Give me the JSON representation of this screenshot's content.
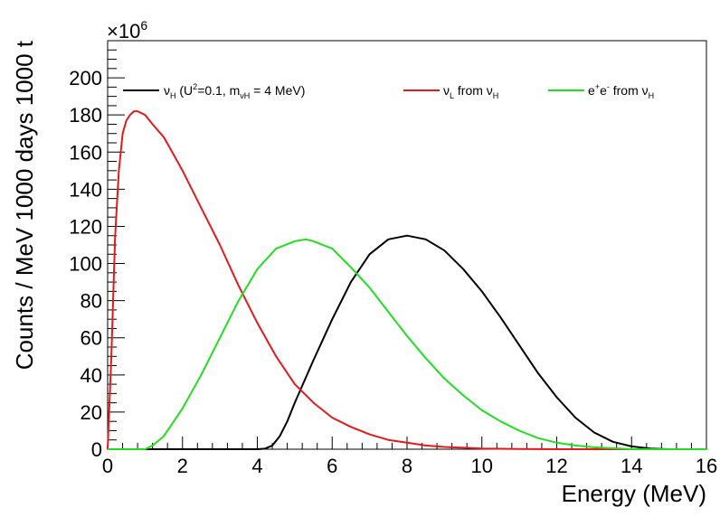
{
  "chart_data": {
    "type": "line",
    "xlabel": "Energy (MeV)",
    "ylabel": "Counts / MeV 1000 days 1000 t",
    "y_multiplier_label": "×10",
    "y_multiplier_exponent": "6",
    "xlim": [
      0,
      16
    ],
    "ylim": [
      0,
      220
    ],
    "xticks": [
      0,
      2,
      4,
      6,
      8,
      10,
      12,
      14,
      16
    ],
    "yticks": [
      0,
      20,
      40,
      60,
      80,
      100,
      120,
      140,
      160,
      180,
      200
    ],
    "grid": false,
    "legend_position": "top",
    "legend": [
      {
        "series": 0,
        "parts": [
          {
            "t": "ν"
          },
          {
            "t": "H",
            "s": "sub"
          },
          {
            "t": " (U"
          },
          {
            "t": "2",
            "s": "sup"
          },
          {
            "t": "=0.1, m"
          },
          {
            "t": "νH",
            "s": "sub"
          },
          {
            "t": " = 4 MeV)"
          }
        ]
      },
      {
        "series": 1,
        "parts": [
          {
            "t": "ν"
          },
          {
            "t": "L",
            "s": "sub"
          },
          {
            "t": " from ν"
          },
          {
            "t": "H",
            "s": "sub"
          }
        ]
      },
      {
        "series": 2,
        "parts": [
          {
            "t": "e"
          },
          {
            "t": "+",
            "s": "sup"
          },
          {
            "t": "e"
          },
          {
            "t": "-",
            "s": "sup"
          },
          {
            "t": " from ν"
          },
          {
            "t": "H",
            "s": "sub"
          }
        ]
      }
    ],
    "series": [
      {
        "color": "#000000",
        "x": [
          0,
          4.0,
          4.2,
          4.4,
          4.6,
          4.8,
          5.0,
          5.5,
          6.0,
          6.5,
          7.0,
          7.5,
          8.0,
          8.5,
          9.0,
          9.5,
          10.0,
          10.5,
          11.0,
          11.5,
          12.0,
          12.5,
          13.0,
          13.5,
          14.0,
          14.5,
          15.0,
          16.0
        ],
        "y": [
          0,
          0,
          0.3,
          2,
          7,
          15,
          25,
          48,
          70,
          90,
          105,
          113,
          115,
          113,
          107,
          97,
          85,
          71,
          56,
          41,
          28,
          17,
          9,
          4,
          1.5,
          0.4,
          0,
          0
        ]
      },
      {
        "color": "#e31a1c",
        "x": [
          0,
          0.1,
          0.2,
          0.3,
          0.4,
          0.5,
          0.6,
          0.7,
          0.8,
          1.0,
          1.2,
          1.5,
          2.0,
          2.5,
          3.0,
          3.5,
          4.0,
          4.5,
          5.0,
          5.5,
          6.0,
          6.5,
          7.0,
          7.5,
          8.0,
          8.5,
          9.0,
          10.0,
          11.0,
          12.0,
          13.0,
          14.0,
          16.0
        ],
        "y": [
          0,
          50,
          115,
          150,
          170,
          177,
          180,
          182,
          182,
          180,
          175,
          168,
          150,
          130,
          110,
          88,
          68,
          50,
          35,
          25,
          17,
          12,
          8,
          5,
          3.5,
          2,
          1.2,
          0.4,
          0.1,
          0,
          0,
          0,
          0
        ]
      },
      {
        "color": "#22dd22",
        "x": [
          0,
          1.0,
          1.2,
          1.5,
          2.0,
          2.5,
          3.0,
          3.5,
          4.0,
          4.5,
          5.0,
          5.3,
          5.5,
          6.0,
          6.5,
          7.0,
          7.5,
          8.0,
          8.5,
          9.0,
          9.5,
          10.0,
          10.5,
          11.0,
          11.5,
          12.0,
          12.5,
          13.0,
          13.5,
          14.0,
          16.0
        ],
        "y": [
          0,
          0,
          2,
          7,
          22,
          40,
          60,
          80,
          97,
          108,
          112,
          113,
          112,
          108,
          98,
          87,
          74,
          61,
          49,
          38,
          29,
          21,
          15,
          10,
          6,
          3.5,
          2,
          1,
          0.5,
          0,
          0
        ]
      }
    ]
  }
}
